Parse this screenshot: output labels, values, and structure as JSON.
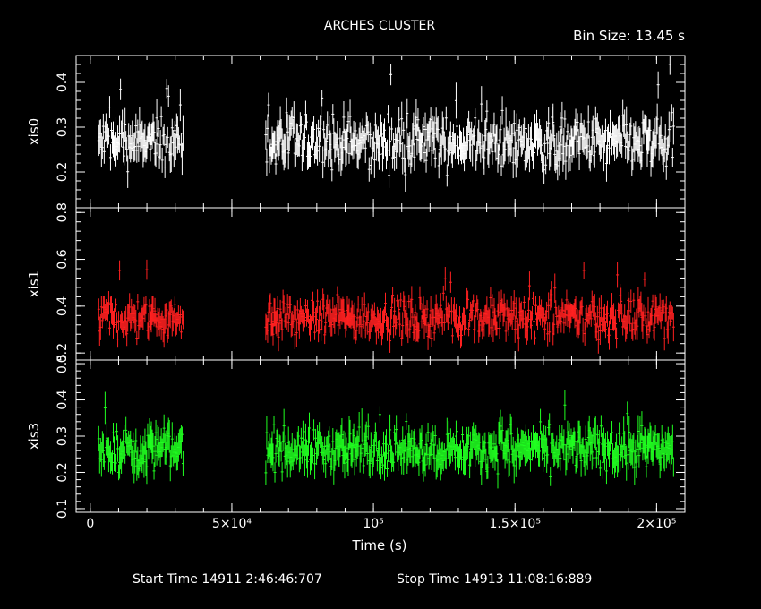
{
  "chart_data": {
    "type": "line",
    "title": "ARCHES CLUSTER",
    "bin_size_label": "Bin Size: 13.45 s",
    "xlabel": "Time (s)",
    "xlim": [
      -5000,
      210000
    ],
    "x_ticks": [
      {
        "value": 0,
        "label": "0"
      },
      {
        "value": 50000,
        "label": "5×10⁴"
      },
      {
        "value": 100000,
        "label": "10⁵"
      },
      {
        "value": 150000,
        "label": "1.5×10⁵"
      },
      {
        "value": 200000,
        "label": "2×10⁵"
      }
    ],
    "footer": {
      "start": "Start Time 14911  2:46:46:707",
      "stop": "Stop Time 14913 11:08:16:889"
    },
    "series": [
      {
        "name": "xis0",
        "color": "#ffffff",
        "ylim": [
          0.12,
          0.46
        ],
        "yticks": [
          0.2,
          0.3,
          0.4
        ],
        "ytick_labels": [
          "0.2",
          "0.3",
          "0.4"
        ],
        "segments": [
          [
            3000,
            33000
          ],
          [
            62000,
            206000
          ]
        ],
        "mean": 0.265,
        "spread": 0.035,
        "errbar": 0.03
      },
      {
        "name": "xis1",
        "color": "#ff2020",
        "ylim": [
          0.17,
          0.82
        ],
        "yticks": [
          0.2,
          0.4,
          0.6,
          0.8
        ],
        "ytick_labels": [
          "0.2",
          "0.4",
          "0.6",
          "0.8"
        ],
        "segments": [
          [
            3000,
            33000
          ],
          [
            62000,
            206000
          ]
        ],
        "mean": 0.35,
        "spread": 0.05,
        "errbar": 0.045
      },
      {
        "name": "xis3",
        "color": "#20ff20",
        "ylim": [
          0.09,
          0.51
        ],
        "yticks": [
          0.1,
          0.2,
          0.3,
          0.4,
          0.5
        ],
        "ytick_labels": [
          "0.1",
          "0.2",
          "0.3",
          "0.4",
          "0.5"
        ],
        "segments": [
          [
            3000,
            33000
          ],
          [
            62000,
            206000
          ]
        ],
        "mean": 0.265,
        "spread": 0.035,
        "errbar": 0.035
      }
    ]
  }
}
